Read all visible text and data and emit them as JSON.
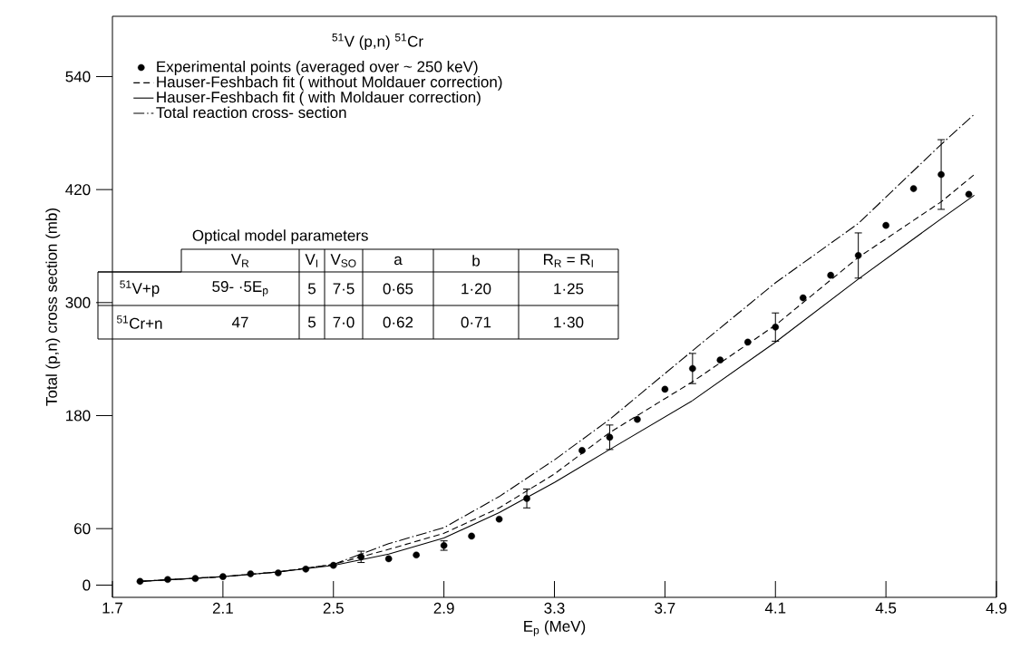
{
  "chart_data": {
    "type": "line",
    "title": "$^{51}$V (p,n) $^{51}$Cr",
    "xlabel": "E$_{p}$ (MeV)",
    "ylabel": "Total (p,n) cross section (mb)",
    "xlim": [
      1.7,
      4.9
    ],
    "ylim": [
      -13,
      604
    ],
    "xticks": [
      1.7,
      2.1,
      2.5,
      2.9,
      3.3,
      3.7,
      4.1,
      4.5,
      4.9
    ],
    "yticks": [
      0,
      60,
      180,
      300,
      420,
      540
    ],
    "grid": false,
    "legend": "top left",
    "series": [
      {
        "name": "Experimental points (averaged over ~ 250 keV)",
        "type": "scatter",
        "marker": "circle",
        "color": "#000000",
        "x": [
          1.8,
          1.9,
          2.0,
          2.1,
          2.2,
          2.3,
          2.4,
          2.5,
          2.6,
          2.7,
          2.8,
          2.9,
          3.0,
          3.1,
          3.2,
          3.4,
          3.5,
          3.6,
          3.7,
          3.8,
          3.9,
          4.0,
          4.1,
          4.2,
          4.3,
          4.4,
          4.5,
          4.6,
          4.7,
          4.8
        ],
        "values": [
          4,
          6,
          7,
          9,
          12,
          13,
          17,
          21,
          30,
          28,
          32,
          42,
          52,
          70,
          92,
          143,
          157,
          176,
          208,
          230,
          239,
          258,
          274,
          305,
          329,
          350,
          382,
          421,
          436,
          415
        ],
        "errors": [
          null,
          null,
          null,
          null,
          null,
          null,
          null,
          null,
          6,
          null,
          null,
          5,
          null,
          null,
          10,
          null,
          13,
          null,
          null,
          16,
          null,
          null,
          15,
          null,
          null,
          24,
          null,
          null,
          37,
          null
        ]
      },
      {
        "name": "Hauser-Feshbach fit ( without Moldauer correction)",
        "line_style": "dashed",
        "marker": "none",
        "color": "#000000",
        "x": [
          1.8,
          2.1,
          2.3,
          2.5,
          2.7,
          2.9,
          3.1,
          3.3,
          3.5,
          3.8,
          4.1,
          4.4,
          4.7,
          4.82
        ],
        "values": [
          4,
          9,
          14,
          22,
          38,
          55,
          82,
          118,
          162,
          216,
          276,
          348,
          407,
          436
        ]
      },
      {
        "name": "Hauser-Feshbach fit ( with Moldauer correction)",
        "line_style": "solid",
        "marker": "none",
        "color": "#000000",
        "x": [
          1.8,
          2.1,
          2.3,
          2.5,
          2.7,
          2.9,
          3.1,
          3.3,
          3.5,
          3.8,
          4.1,
          4.4,
          4.7,
          4.82
        ],
        "values": [
          4,
          9,
          14,
          21,
          33,
          50,
          77,
          109,
          144,
          196,
          258,
          325,
          389,
          414
        ]
      },
      {
        "name": "Total reaction cross- section",
        "line_style": "dashdot",
        "marker": "none",
        "color": "#000000",
        "x": [
          1.8,
          2.1,
          2.3,
          2.5,
          2.7,
          2.9,
          3.1,
          3.3,
          3.5,
          3.8,
          4.1,
          4.4,
          4.7,
          4.82
        ],
        "values": [
          4,
          9,
          14,
          22,
          44,
          61,
          94,
          133,
          176,
          249,
          321,
          384,
          468,
          500
        ]
      }
    ],
    "annotations": [
      "Optical model parameters",
      "V$_{R}$",
      "V$_{I}$",
      "V$_{SO}$",
      "a",
      "b",
      "R$_{R}$ = R$_{I}$",
      "$^{51}$V+p",
      "59- ·5E$_{p}$",
      "5",
      "7·5",
      "0·65",
      "1·20",
      "1·25",
      "$^{51}$Cr+n",
      "47",
      "5",
      "7·0",
      "0·62",
      "0·71",
      "1·30"
    ]
  }
}
